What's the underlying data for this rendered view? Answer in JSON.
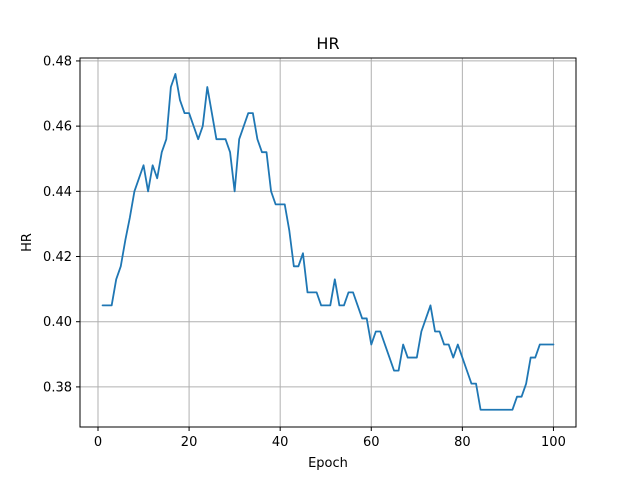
{
  "chart_data": {
    "type": "line",
    "title": "HR",
    "xlabel": "Epoch",
    "ylabel": "HR",
    "xlim": [
      -3.95,
      104.95
    ],
    "ylim": [
      0.3677,
      0.4809
    ],
    "xticks": [
      0,
      20,
      40,
      60,
      80,
      100
    ],
    "yticks": [
      0.38,
      0.4,
      0.42,
      0.44,
      0.46,
      0.48
    ],
    "ytick_labels": [
      "0.38",
      "0.40",
      "0.42",
      "0.44",
      "0.46",
      "0.48"
    ],
    "grid": true,
    "colors": {
      "series": "#1f77b4"
    },
    "series": [
      {
        "x": [
          1,
          2,
          3,
          4,
          5,
          6,
          7,
          8,
          9,
          10,
          11,
          12,
          13,
          14,
          15,
          16,
          17,
          18,
          19,
          20,
          21,
          22,
          23,
          24,
          25,
          26,
          27,
          28,
          29,
          30,
          31,
          32,
          33,
          34,
          35,
          36,
          37,
          38,
          39,
          40,
          41,
          42,
          43,
          44,
          45,
          46,
          47,
          48,
          49,
          50,
          51,
          52,
          53,
          54,
          55,
          56,
          57,
          58,
          59,
          60,
          61,
          62,
          63,
          64,
          65,
          66,
          67,
          68,
          69,
          70,
          71,
          72,
          73,
          74,
          75,
          76,
          77,
          78,
          79,
          80,
          81,
          82,
          83,
          84,
          85,
          86,
          87,
          88,
          89,
          90,
          91,
          92,
          93,
          94,
          95,
          96,
          97,
          98,
          99,
          100
        ],
        "values": [
          0.405,
          0.405,
          0.405,
          0.413,
          0.417,
          0.425,
          0.432,
          0.44,
          0.444,
          0.448,
          0.44,
          0.448,
          0.444,
          0.452,
          0.456,
          0.472,
          0.476,
          0.468,
          0.464,
          0.464,
          0.46,
          0.456,
          0.46,
          0.472,
          0.464,
          0.456,
          0.456,
          0.456,
          0.452,
          0.44,
          0.456,
          0.46,
          0.464,
          0.464,
          0.456,
          0.452,
          0.452,
          0.44,
          0.436,
          0.436,
          0.436,
          0.428,
          0.417,
          0.417,
          0.421,
          0.409,
          0.409,
          0.409,
          0.405,
          0.405,
          0.405,
          0.413,
          0.405,
          0.405,
          0.409,
          0.409,
          0.405,
          0.401,
          0.401,
          0.393,
          0.397,
          0.397,
          0.393,
          0.389,
          0.385,
          0.385,
          0.393,
          0.389,
          0.389,
          0.389,
          0.397,
          0.401,
          0.405,
          0.397,
          0.397,
          0.393,
          0.393,
          0.389,
          0.393,
          0.389,
          0.385,
          0.381,
          0.381,
          0.373,
          0.373,
          0.373,
          0.373,
          0.373,
          0.373,
          0.373,
          0.373,
          0.377,
          0.377,
          0.381,
          0.389,
          0.389,
          0.393,
          0.393,
          0.393,
          0.393
        ]
      }
    ]
  }
}
